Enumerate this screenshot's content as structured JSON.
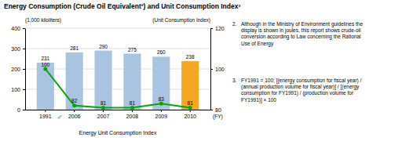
{
  "chart_data": {
    "type": "bar",
    "title": "Energy Consumption (Crude Oil Equivalent²) and Unit Consumption Index³",
    "ylabel": "(1,000 kiloliters)",
    "y2label": "(Unit Consumption Index)",
    "xlabel": "Energy Unit Consumption Index",
    "annotations": [
      "∕∕",
      "(FY)"
    ],
    "notes": [
      {
        "label": "2.",
        "text": "Although in the Ministry of Environment guidelines the\ndisplay is shown in joules, this report shows crude-oil\nconversion according to Law concerning the Rational\nUse of Energy"
      },
      {
        "label": "3.",
        "text": "FY1991 = 100; [(energy consumption for fiscal year) /\n(annual production volume for fiscal year)] / [(energy\nconsumption for FY1991) / (production volume for\nFY1991)] × 100"
      }
    ],
    "categories": [
      "1991",
      "2006",
      "2007",
      "2008",
      "2009",
      "2010"
    ],
    "series": [
      {
        "type": "bar",
        "colors": [
          "#a8c4e0",
          "#a8c4e0",
          "#a8c4e0",
          "#a8c4e0",
          "#a8c4e0",
          "#f5a623"
        ],
        "values": [
          231,
          281,
          290,
          275,
          260,
          238
        ],
        "data_labels": true
      },
      {
        "type": "line",
        "axis": "y2",
        "color": "#00aa00",
        "marker": "circle",
        "values": [
          100,
          82,
          81,
          81,
          83,
          81
        ],
        "data_labels": true
      }
    ],
    "ylim": [
      0,
      400
    ],
    "yticks": [
      0,
      100,
      200,
      300,
      400
    ],
    "y2lim": [
      80,
      120
    ],
    "y2ticks": [
      80,
      100,
      120
    ],
    "grid": true
  }
}
